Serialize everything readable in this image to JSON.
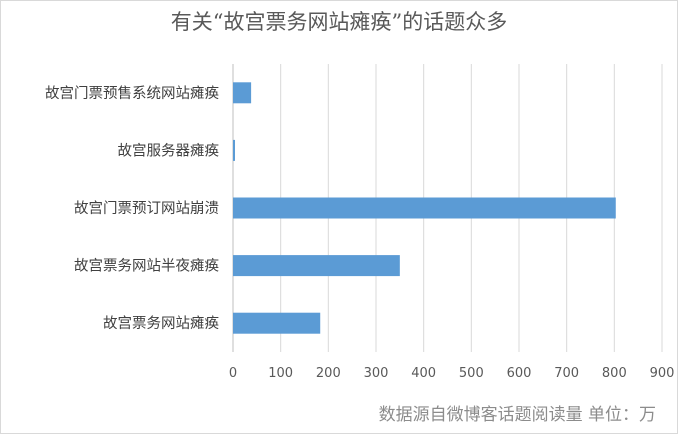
{
  "chart_data": {
    "type": "bar",
    "orientation": "horizontal",
    "title": "有关“故宫票务网站瘫痪”的话题众多",
    "categories": [
      "故宫门票预售系统网站瘫痪",
      "故宫服务器瘫痪",
      "故宫门票预订网站崩溃",
      "故宫票务网站半夜瘫痪",
      "故宫票务网站瘫痪"
    ],
    "values": [
      38,
      3,
      803,
      350,
      183
    ],
    "xlim": [
      0,
      900
    ],
    "xticks": [
      "0",
      "100",
      "200",
      "300",
      "400",
      "500",
      "600",
      "700",
      "800",
      "900"
    ],
    "xlabel": "",
    "ylabel": "",
    "grid": "vertical",
    "bar_color": "#5b9bd5",
    "grid_color": "#d9d9d9"
  },
  "source_note": "数据源自微博客话题阅读量  单位：万"
}
